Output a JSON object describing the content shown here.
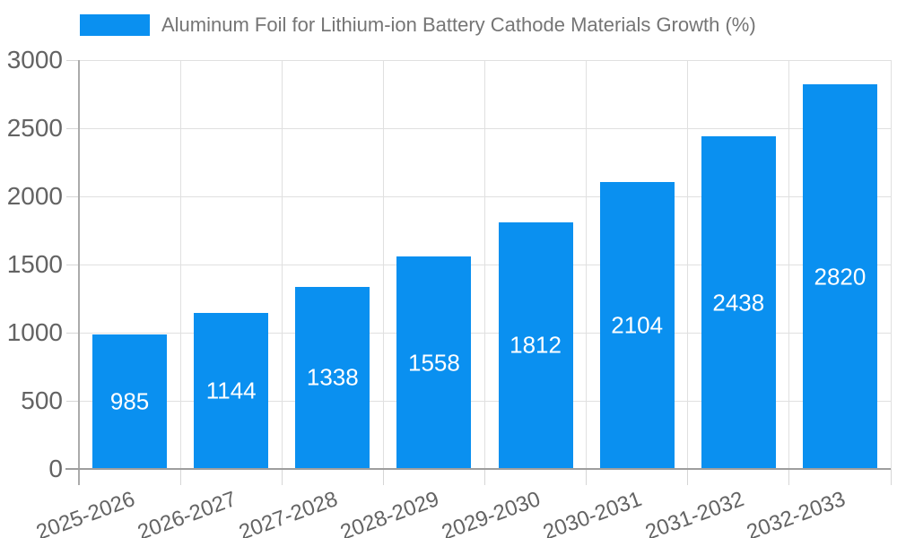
{
  "chart_data": {
    "type": "bar",
    "title": "Aluminum Foil for Lithium-ion Battery Cathode Materials Growth (%)",
    "categories": [
      "2025-2026",
      "2026-2027",
      "2027-2028",
      "2028-2029",
      "2029-2030",
      "2030-2031",
      "2031-2032",
      "2032-2033"
    ],
    "values": [
      985,
      1144,
      1338,
      1558,
      1812,
      2104,
      2438,
      2820
    ],
    "xlabel": "",
    "ylabel": "",
    "ylim": [
      0,
      3000
    ],
    "yticks": [
      0,
      500,
      1000,
      1500,
      2000,
      2500,
      3000
    ],
    "grid": true,
    "legend_position": "top-left",
    "value_labels_inside_bars": true
  },
  "colors": {
    "bar": "#0A90F0",
    "bar_label": "#FFFFFF",
    "title_text": "#757575",
    "axis_text": "#636363",
    "gridline": "#E0E0E0",
    "tick": "#D6D6D6",
    "x_axis_line": "#9E9E9E",
    "y_axis_line": "#ABABAB",
    "background": "#FFFFFF"
  }
}
